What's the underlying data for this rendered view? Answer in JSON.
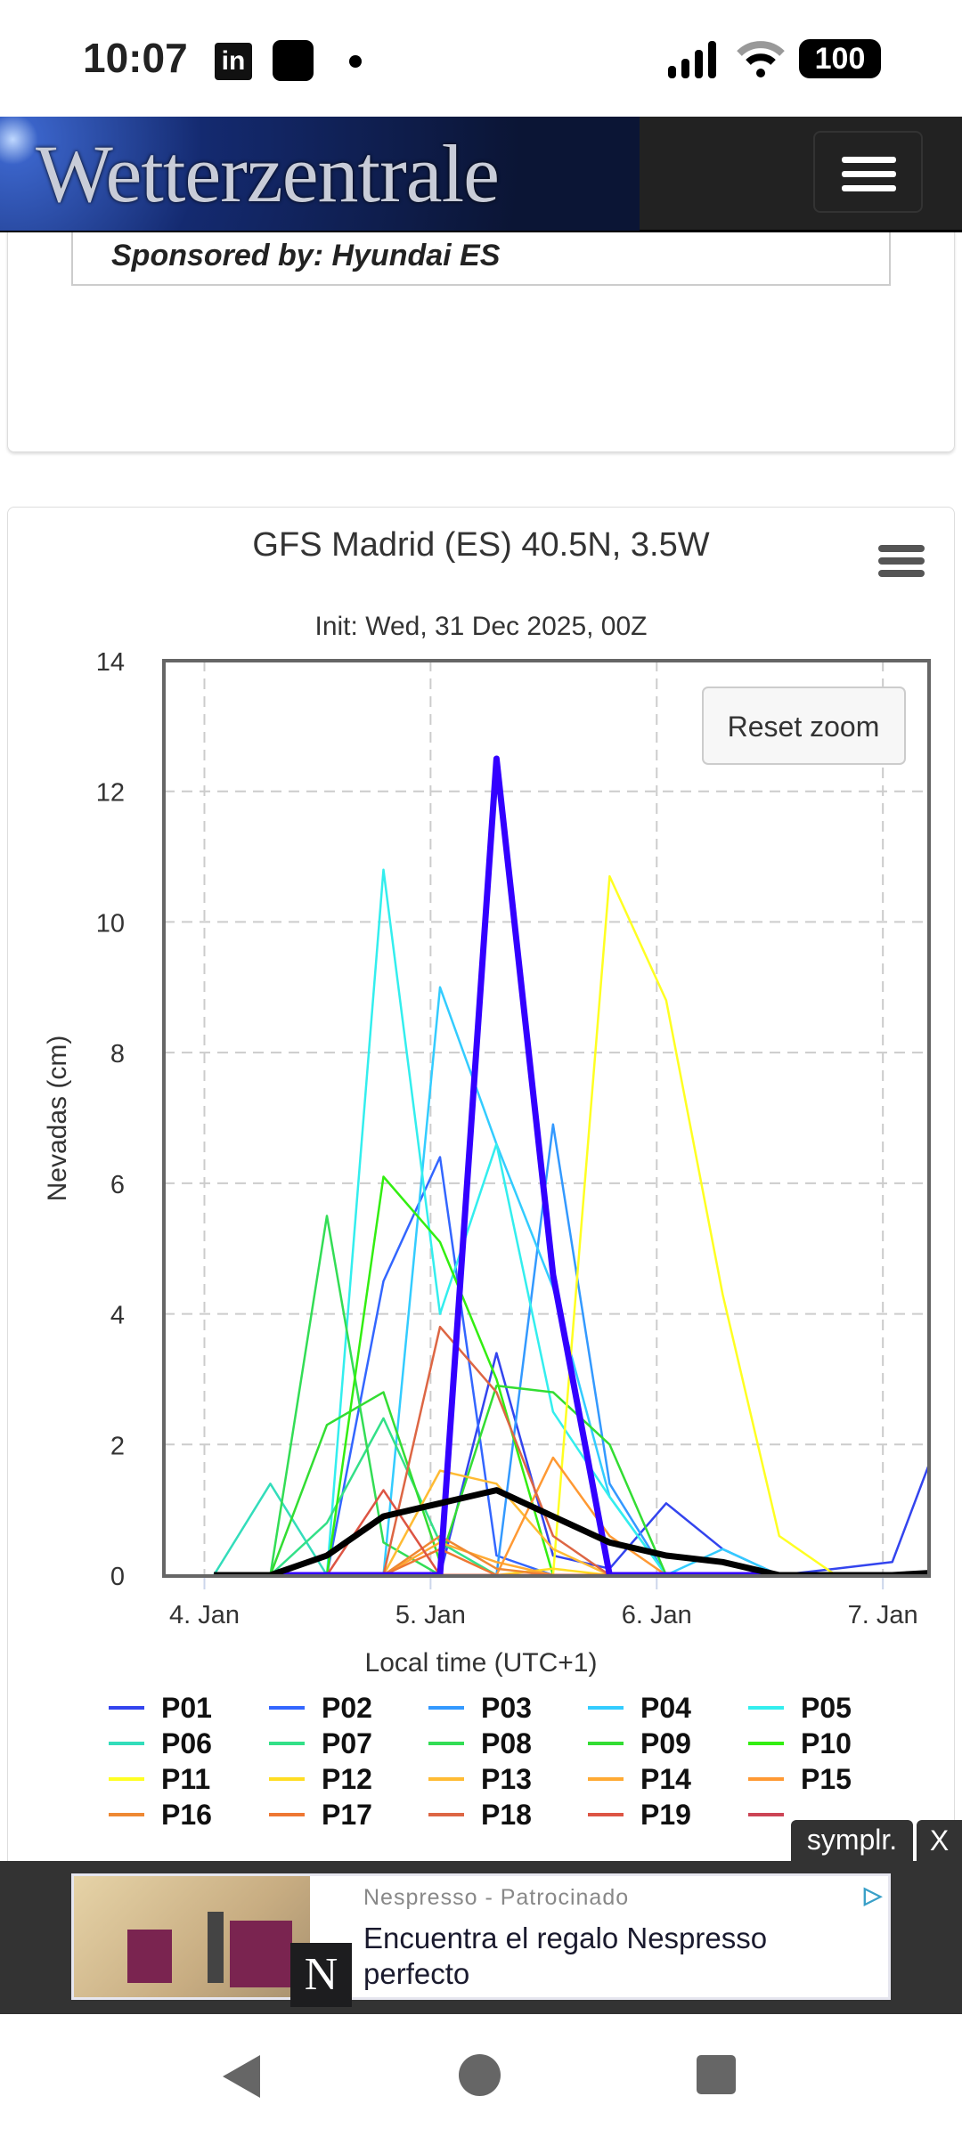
{
  "status_bar": {
    "time": "10:07",
    "linkedin": "in",
    "battery": "100"
  },
  "header": {
    "logo_text": "Wetterzentrale"
  },
  "sponsor": {
    "text": "Sponsored by: Hyundai ES"
  },
  "chart_menu_icon": "hamburger-icon",
  "reset_zoom": "Reset zoom",
  "chart_data": {
    "type": "line",
    "title": "GFS Madrid (ES) 40.5N, 3.5W",
    "subtitle": "Init: Wed, 31 Dec 2025, 00Z",
    "xlabel": "Local time (UTC+1)",
    "ylabel": "Nevadas (cm)",
    "ylim": [
      0,
      14
    ],
    "yticks": [
      "0",
      "2",
      "4",
      "6",
      "8",
      "10",
      "12",
      "14"
    ],
    "xlim_hours_from_4jan": [
      -4.3,
      76.9
    ],
    "xticks": [
      {
        "label": "4. Jan",
        "hour": 0
      },
      {
        "label": "5. Jan",
        "hour": 24
      },
      {
        "label": "6. Jan",
        "hour": 48
      },
      {
        "label": "7. Jan",
        "hour": 72
      }
    ],
    "grid": true,
    "legend_position": "bottom",
    "x_hours": [
      1,
      7,
      13,
      19,
      25,
      31,
      37,
      43,
      49,
      55,
      61,
      67,
      73,
      79
    ],
    "series": [
      {
        "name": "P01",
        "color": "#3344ee",
        "values": [
          0,
          0,
          0,
          0,
          0,
          3.4,
          0.3,
          0.1,
          1.1,
          0.4,
          0,
          0.1,
          0.2,
          2.5
        ]
      },
      {
        "name": "P02",
        "color": "#3366ff",
        "values": [
          0,
          0,
          0,
          4.5,
          6.4,
          0.3,
          0,
          0,
          0,
          0,
          0,
          0,
          0,
          0
        ]
      },
      {
        "name": "P03",
        "color": "#3399ff",
        "values": [
          0,
          0,
          0,
          0,
          0,
          0,
          6.9,
          1.4,
          0,
          0,
          0,
          0,
          0,
          0
        ]
      },
      {
        "name": "P04",
        "color": "#33ccff",
        "values": [
          0,
          0,
          0,
          0,
          9.0,
          6.6,
          4.4,
          1.2,
          0,
          0.4,
          0,
          0,
          0,
          0
        ]
      },
      {
        "name": "P05",
        "color": "#33eeee",
        "values": [
          0,
          0,
          0,
          10.8,
          4.0,
          6.6,
          2.5,
          1.2,
          0,
          0,
          0,
          0,
          0,
          0
        ]
      },
      {
        "name": "P06",
        "color": "#33ddbb",
        "values": [
          0,
          1.4,
          0,
          0,
          0,
          0,
          0,
          0,
          0,
          0,
          0,
          0,
          0,
          0
        ]
      },
      {
        "name": "P07",
        "color": "#33e088",
        "values": [
          0,
          0,
          0.8,
          2.4,
          0.5,
          0,
          0,
          0,
          0,
          0,
          0,
          0,
          0,
          0
        ]
      },
      {
        "name": "P08",
        "color": "#33dd55",
        "values": [
          0,
          0,
          5.5,
          0.5,
          0,
          0,
          0,
          0,
          0,
          0,
          0,
          0,
          0,
          0
        ]
      },
      {
        "name": "P09",
        "color": "#33dd33",
        "values": [
          0,
          0,
          2.3,
          2.8,
          0.2,
          2.9,
          2.8,
          2.0,
          0,
          0,
          0,
          0,
          0,
          0
        ]
      },
      {
        "name": "P10",
        "color": "#33ee11",
        "values": [
          0,
          0,
          0,
          6.1,
          5.1,
          3.0,
          0,
          0,
          0,
          0,
          0,
          0,
          0,
          0
        ]
      },
      {
        "name": "P11",
        "color": "#ffff22",
        "values": [
          0,
          0,
          0,
          0,
          0,
          0,
          0,
          10.7,
          8.8,
          4.3,
          0.6,
          0,
          0,
          0
        ]
      },
      {
        "name": "P12",
        "color": "#ffdd22",
        "values": [
          0,
          0,
          0,
          0,
          0,
          0,
          0.1,
          0,
          0,
          0,
          0,
          0,
          0,
          0
        ]
      },
      {
        "name": "P13",
        "color": "#ffbb33",
        "values": [
          0,
          0,
          0,
          0,
          1.6,
          1.4,
          0.4,
          0,
          0,
          0,
          0,
          0,
          0,
          0
        ]
      },
      {
        "name": "P14",
        "color": "#ffaa33",
        "values": [
          0,
          0,
          0,
          0,
          0.5,
          0.2,
          0,
          0,
          0,
          0,
          0,
          0,
          0,
          0
        ]
      },
      {
        "name": "P15",
        "color": "#ff9933",
        "values": [
          0,
          0,
          0,
          0,
          0,
          0,
          1.8,
          0.6,
          0,
          0,
          0,
          0,
          0,
          0
        ]
      },
      {
        "name": "P16",
        "color": "#ee8833",
        "values": [
          0,
          0,
          0,
          0,
          0.6,
          0.1,
          0,
          0,
          0,
          0,
          0,
          0,
          0,
          0
        ]
      },
      {
        "name": "P17",
        "color": "#ee7733",
        "values": [
          0,
          0,
          0,
          0,
          0.4,
          0,
          0,
          0,
          0,
          0,
          0,
          0,
          0,
          0
        ]
      },
      {
        "name": "P18",
        "color": "#dd6644",
        "values": [
          0,
          0,
          0,
          0,
          3.8,
          2.8,
          0.6,
          0,
          0,
          0,
          0,
          0,
          0,
          0
        ]
      },
      {
        "name": "P19",
        "color": "#dd5544",
        "values": [
          0,
          0,
          0,
          1.3,
          0,
          0,
          0,
          0,
          0,
          0,
          0,
          0,
          0,
          0
        ]
      },
      {
        "name": "",
        "color": "#cc4455",
        "values": [
          0,
          0,
          0,
          0,
          0,
          0,
          0,
          0,
          0,
          0,
          0,
          0,
          0,
          0
        ]
      },
      {
        "name": "",
        "color": "#3300ff",
        "thick": true,
        "values": [
          0,
          0,
          0,
          0,
          0,
          12.5,
          4.6,
          0,
          0,
          0,
          0,
          0,
          0,
          0
        ]
      },
      {
        "name": "",
        "color": "#000000",
        "thick": true,
        "values": [
          0,
          0,
          0.3,
          0.9,
          1.1,
          1.3,
          0.9,
          0.5,
          0.3,
          0.2,
          0,
          0,
          0,
          0.05
        ]
      }
    ]
  },
  "ad": {
    "source": "Nespresso  -  Patrocinado",
    "title": "Encuentra el regalo Nespresso perfecto",
    "logo": "N",
    "choices_icon": "adchoices-icon",
    "badge": "symplr.",
    "close": "X"
  }
}
